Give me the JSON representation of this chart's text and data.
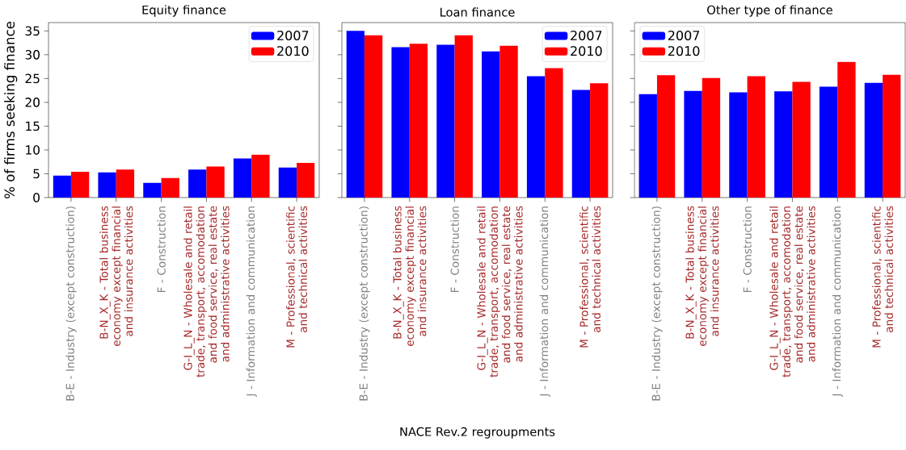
{
  "chart_data": [
    {
      "type": "bar",
      "title": "Equity finance",
      "ylabel": "% of firms seeking finance",
      "categories": [
        "B-E - Industry (except construction)",
        "B-N_X_K - Total business economy except financial and insurance activities",
        "F - Construction",
        "G-I_L_N - Wholesale and retail trade, transport, accomodation and food service, real estate and administrative activities",
        "J - Information and communication",
        "M - Professional, scientific and technical activities"
      ],
      "series": [
        {
          "name": "2007",
          "color": "#0000ff",
          "values": [
            4.6,
            5.3,
            3.1,
            5.9,
            8.2,
            6.3
          ]
        },
        {
          "name": "2010",
          "color": "#ff0000",
          "values": [
            5.4,
            5.9,
            4.1,
            6.5,
            9.0,
            7.3
          ]
        }
      ],
      "ylim": [
        0,
        36.75
      ],
      "yticks": [
        0,
        5,
        10,
        15,
        20,
        25,
        30,
        35
      ],
      "legend": "top right",
      "grid": false
    },
    {
      "type": "bar",
      "title": "Loan finance",
      "xlabel": "NACE Rev.2 regroupments",
      "categories": [
        "B-E - Industry (except construction)",
        "B-N_X_K - Total business economy except financial and insurance activities",
        "F - Construction",
        "G-I_L_N - Wholesale and retail trade, transport, accomodation and food service, real estate and administrative activities",
        "J - Information and communication",
        "M - Professional, scientific and technical activities"
      ],
      "series": [
        {
          "name": "2007",
          "color": "#0000ff",
          "values": [
            35.0,
            31.6,
            32.1,
            30.7,
            25.5,
            22.6
          ]
        },
        {
          "name": "2010",
          "color": "#ff0000",
          "values": [
            34.1,
            32.3,
            34.1,
            31.9,
            27.2,
            24.0
          ]
        }
      ],
      "ylim": [
        0,
        36.75
      ],
      "yticks": [
        0,
        5,
        10,
        15,
        20,
        25,
        30,
        35
      ],
      "tick_labels": "x",
      "legend": "top right",
      "grid": false
    },
    {
      "type": "bar",
      "title": "Other type of finance",
      "categories": [
        "B-E - Industry (except construction)",
        "B-N_X_K - Total business economy except financial and insurance activities",
        "F - Construction",
        "G-I_L_N - Wholesale and retail trade, transport, accomodation and food service, real estate and administrative activities",
        "J - Information and communication",
        "M - Professional, scientific and technical activities"
      ],
      "series": [
        {
          "name": "2007",
          "color": "#0000ff",
          "values": [
            21.7,
            22.4,
            22.1,
            22.3,
            23.3,
            24.1
          ]
        },
        {
          "name": "2010",
          "color": "#ff0000",
          "values": [
            25.7,
            25.1,
            25.5,
            24.3,
            28.5,
            25.8
          ]
        }
      ],
      "ylim": [
        0,
        36.75
      ],
      "yticks": [
        0,
        5,
        10,
        15,
        20,
        25,
        30,
        35
      ],
      "tick_labels": "x",
      "legend": "top left",
      "grid": false
    }
  ]
}
